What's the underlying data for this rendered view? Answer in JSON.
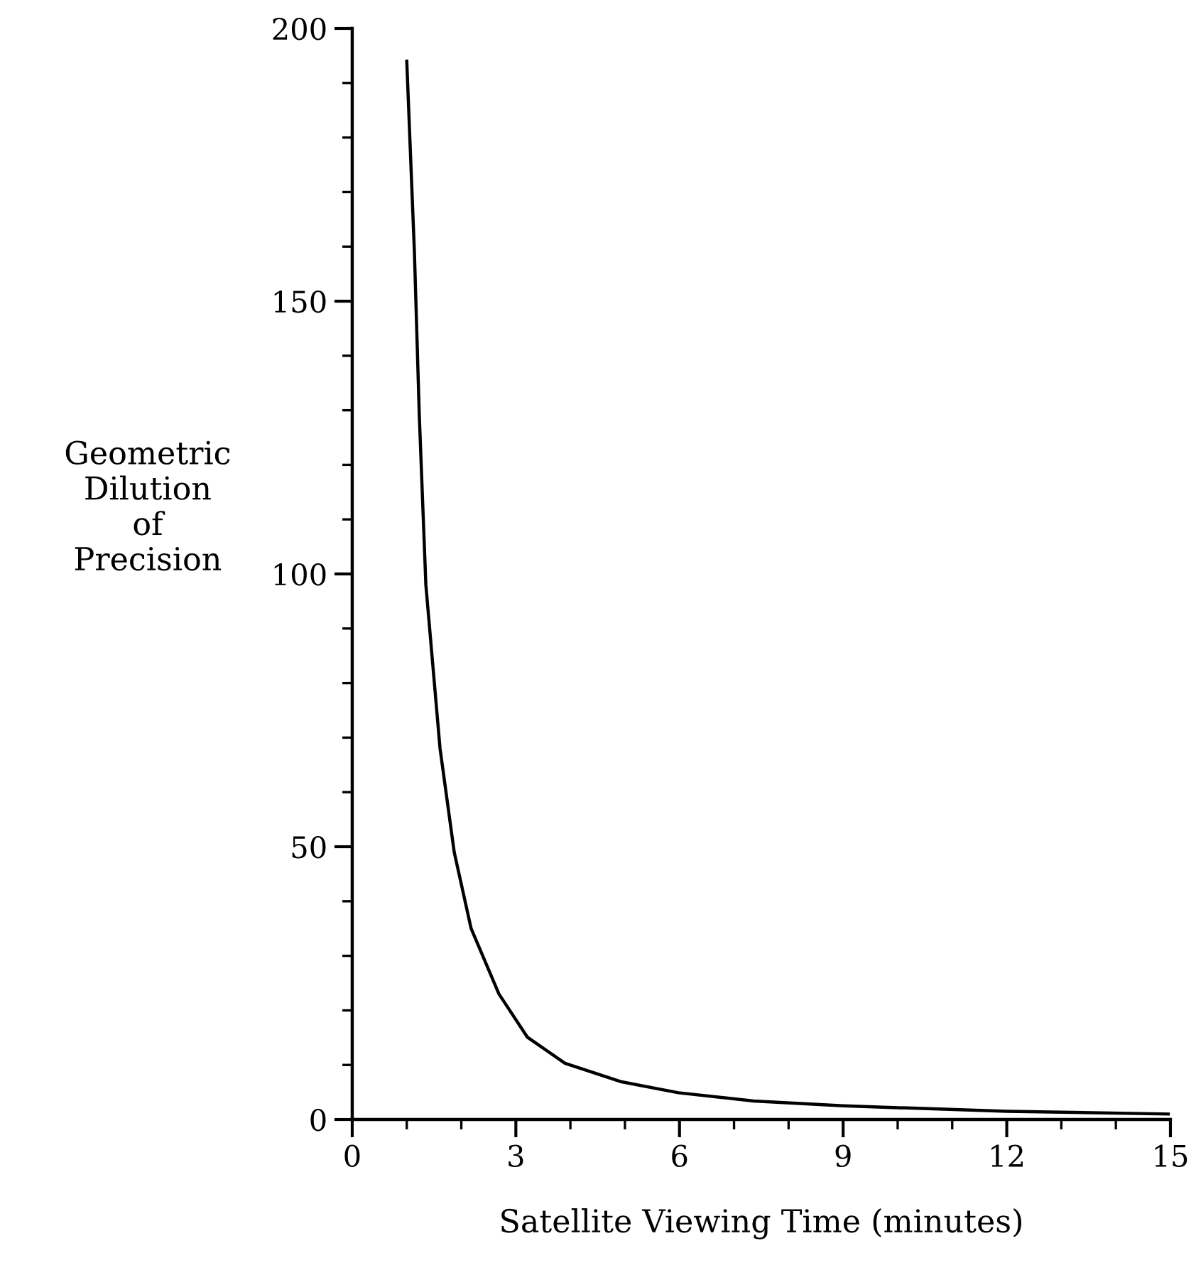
{
  "chart_data": {
    "type": "line",
    "xlabel": "Satellite Viewing Time (minutes)",
    "ylabel": "Geometric\nDilution\nof\nPrecision",
    "series": [
      {
        "color": "#000000",
        "x": [
          1.0,
          1.14,
          1.23,
          1.35,
          1.61,
          1.87,
          2.18,
          2.69,
          3.21,
          3.9,
          4.94,
          5.98,
          7.36,
          9.0,
          12.0,
          14.96
        ],
        "values": [
          194,
          159,
          129,
          98,
          68,
          49,
          35,
          23,
          15.1,
          10.3,
          6.9,
          4.9,
          3.4,
          2.5,
          1.5,
          1.0
        ]
      }
    ],
    "xlim": [
      0,
      15
    ],
    "xticks": [
      0,
      3,
      6,
      9,
      12,
      15
    ],
    "ylim": [
      0,
      200
    ],
    "yticks": [
      0,
      50,
      100,
      150,
      200
    ],
    "grid": false,
    "legend": false,
    "marker": "none",
    "line_style": "solid"
  }
}
